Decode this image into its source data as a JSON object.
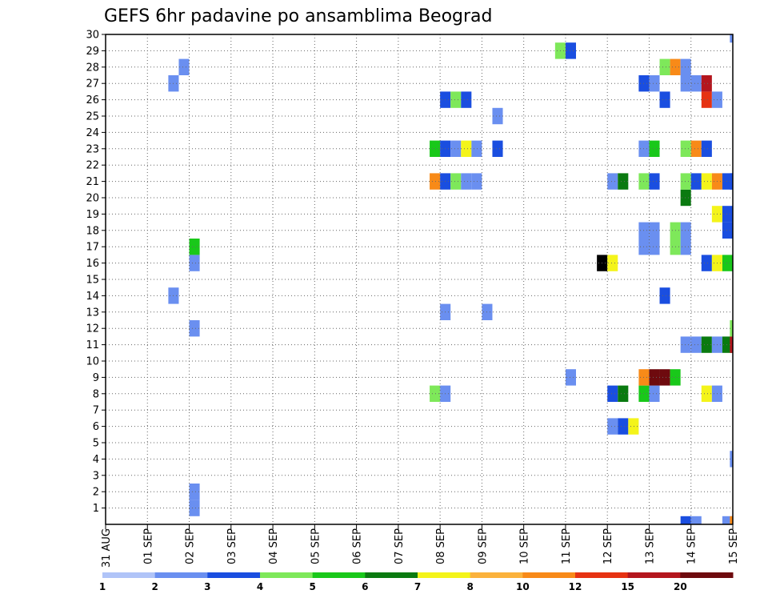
{
  "chart_data": {
    "type": "heatmap",
    "title": "GEFS 6hr padavine po ansamblima Beograd",
    "y_ticks": [
      "1",
      "2",
      "3",
      "4",
      "5",
      "6",
      "7",
      "8",
      "9",
      "10",
      "11",
      "12",
      "13",
      "14",
      "15",
      "16",
      "17",
      "18",
      "19",
      "20",
      "21",
      "22",
      "23",
      "24",
      "25",
      "26",
      "27",
      "28",
      "29",
      "30"
    ],
    "y_range": [
      0,
      30
    ],
    "x_ticks": [
      "31 AUG",
      "01 SEP",
      "02 SEP",
      "03 SEP",
      "04 SEP",
      "05 SEP",
      "06 SEP",
      "07 SEP",
      "08 SEP",
      "09 SEP",
      "10 SEP",
      "11 SEP",
      "12 SEP",
      "13 SEP",
      "14 SEP",
      "15 SEP"
    ],
    "x_range_days": [
      0,
      15
    ],
    "grid": true,
    "cell_days": 0.25,
    "colorbar": {
      "ticks": [
        "1",
        "2",
        "3",
        "4",
        "5",
        "6",
        "7",
        "8",
        "10",
        "12",
        "15",
        "20"
      ],
      "colors": [
        "#b0c4f8",
        "#6a8ff0",
        "#1a4ee0",
        "#7ee85a",
        "#19c81a",
        "#0a7a10",
        "#f4f41a",
        "#fbb23c",
        "#f88a18",
        "#e63212",
        "#b4161e",
        "#6e0a0e"
      ]
    },
    "cells": [
      [
        1.5,
        14,
        1
      ],
      [
        1.5,
        27,
        1
      ],
      [
        1.75,
        28,
        1
      ],
      [
        2.0,
        2,
        1
      ],
      [
        2.0,
        1,
        1
      ],
      [
        2.0,
        12,
        1
      ],
      [
        2.0,
        16,
        1
      ],
      [
        2.0,
        17,
        4
      ],
      [
        7.75,
        8,
        3
      ],
      [
        7.75,
        21,
        8
      ],
      [
        7.75,
        23,
        4
      ],
      [
        8.0,
        8,
        1
      ],
      [
        8.0,
        13,
        1
      ],
      [
        8.0,
        21,
        2
      ],
      [
        8.0,
        23,
        2
      ],
      [
        8.0,
        26,
        2
      ],
      [
        8.25,
        21,
        3
      ],
      [
        8.25,
        23,
        1
      ],
      [
        8.25,
        26,
        3
      ],
      [
        8.5,
        21,
        1
      ],
      [
        8.5,
        23,
        6
      ],
      [
        8.5,
        26,
        2
      ],
      [
        8.75,
        21,
        1
      ],
      [
        8.75,
        23,
        1
      ],
      [
        9.0,
        13,
        1
      ],
      [
        9.25,
        23,
        2
      ],
      [
        9.25,
        25,
        1
      ],
      [
        11.0,
        9,
        1
      ],
      [
        10.75,
        29,
        3
      ],
      [
        11.0,
        29,
        2
      ],
      [
        11.75,
        16,
        12
      ],
      [
        12.0,
        16,
        6
      ],
      [
        12.0,
        6,
        1
      ],
      [
        12.0,
        8,
        2
      ],
      [
        12.0,
        21,
        1
      ],
      [
        12.25,
        6,
        2
      ],
      [
        12.25,
        8,
        5
      ],
      [
        12.25,
        21,
        5
      ],
      [
        12.5,
        6,
        6
      ],
      [
        12.75,
        8,
        4
      ],
      [
        12.75,
        9,
        8
      ],
      [
        12.75,
        18,
        1
      ],
      [
        12.75,
        17,
        1
      ],
      [
        12.75,
        21,
        3
      ],
      [
        12.75,
        23,
        1
      ],
      [
        12.75,
        27,
        2
      ],
      [
        13.0,
        8,
        1
      ],
      [
        13.0,
        9,
        11
      ],
      [
        13.0,
        18,
        1
      ],
      [
        13.0,
        17,
        1
      ],
      [
        13.0,
        21,
        2
      ],
      [
        13.0,
        23,
        4
      ],
      [
        13.0,
        27,
        1
      ],
      [
        13.25,
        9,
        11
      ],
      [
        13.25,
        14,
        2
      ],
      [
        13.25,
        26,
        2
      ],
      [
        13.25,
        28,
        3
      ],
      [
        13.5,
        9,
        4
      ],
      [
        13.5,
        18,
        3
      ],
      [
        13.5,
        17,
        3
      ],
      [
        13.5,
        28,
        8
      ],
      [
        13.75,
        11,
        1
      ],
      [
        13.75,
        18,
        1
      ],
      [
        13.75,
        17,
        1
      ],
      [
        13.75,
        20,
        5
      ],
      [
        13.75,
        21,
        3
      ],
      [
        13.75,
        23,
        3
      ],
      [
        13.75,
        27,
        1
      ],
      [
        13.75,
        28,
        1
      ],
      [
        13.75,
        0,
        2
      ],
      [
        14.0,
        11,
        1
      ],
      [
        14.0,
        21,
        2
      ],
      [
        14.0,
        23,
        8
      ],
      [
        14.0,
        27,
        1
      ],
      [
        14.0,
        0,
        1
      ],
      [
        14.25,
        8,
        6
      ],
      [
        14.25,
        11,
        5
      ],
      [
        14.25,
        16,
        2
      ],
      [
        14.25,
        21,
        6
      ],
      [
        14.25,
        23,
        2
      ],
      [
        14.25,
        26,
        9
      ],
      [
        14.25,
        27,
        10
      ],
      [
        14.5,
        8,
        1
      ],
      [
        14.5,
        11,
        1
      ],
      [
        14.5,
        16,
        6
      ],
      [
        14.5,
        19,
        6
      ],
      [
        14.5,
        21,
        8
      ],
      [
        14.5,
        26,
        1
      ],
      [
        14.75,
        11,
        5
      ],
      [
        14.75,
        16,
        4
      ],
      [
        14.75,
        18,
        2
      ],
      [
        14.75,
        19,
        2
      ],
      [
        14.75,
        21,
        2
      ],
      [
        14.75,
        0,
        1
      ],
      [
        14.93,
        11,
        10
      ],
      [
        14.93,
        12,
        3
      ],
      [
        14.93,
        21,
        2
      ],
      [
        14.93,
        4,
        1
      ],
      [
        14.93,
        30,
        1
      ],
      [
        14.93,
        0,
        8
      ]
    ]
  }
}
